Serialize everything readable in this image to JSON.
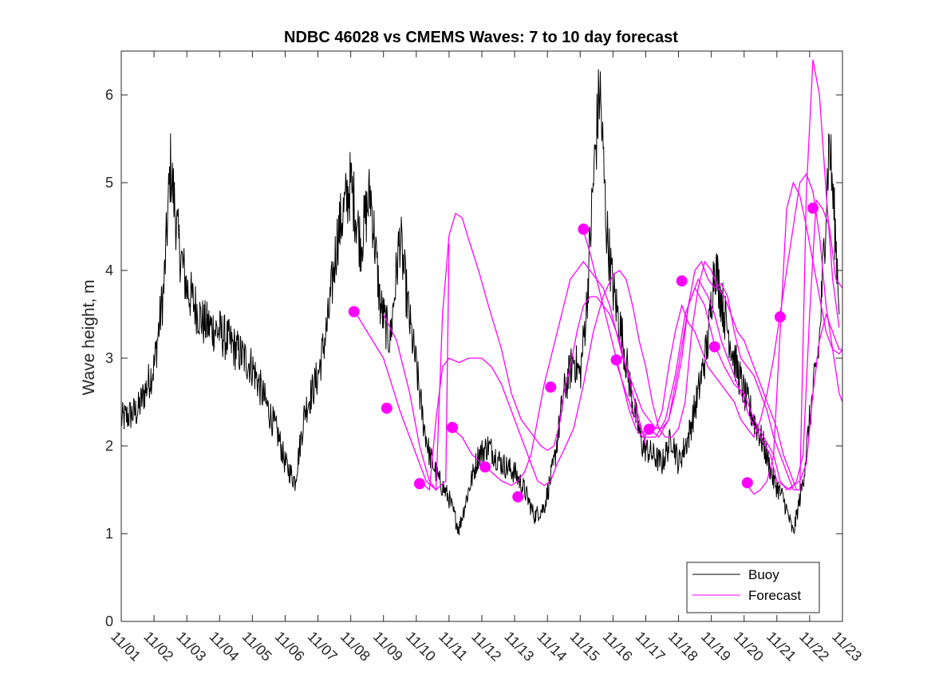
{
  "chart_data": {
    "type": "line",
    "title": "NDBC 46028 vs CMEMS Waves: 7 to 10 day forecast",
    "xlabel": "",
    "ylabel": "Wave height, m",
    "xlim": [
      0,
      22
    ],
    "ylim": [
      0,
      6.5
    ],
    "x_unit": "days since 11/01",
    "xticks": [
      0,
      1,
      2,
      3,
      4,
      5,
      6,
      7,
      8,
      9,
      10,
      11,
      12,
      13,
      14,
      15,
      16,
      17,
      18,
      19,
      20,
      21,
      22
    ],
    "xtick_labels": [
      "11/01",
      "11/02",
      "11/03",
      "11/04",
      "11/05",
      "11/06",
      "11/07",
      "11/08",
      "11/09",
      "11/10",
      "11/11",
      "11/12",
      "11/13",
      "11/14",
      "11/15",
      "11/16",
      "11/17",
      "11/18",
      "11/19",
      "11/20",
      "11/21",
      "11/22",
      "11/23"
    ],
    "yticks": [
      0,
      1,
      2,
      3,
      4,
      5,
      6
    ],
    "ytick_labels": [
      "0",
      "1",
      "2",
      "3",
      "4",
      "5",
      "6"
    ],
    "grid": false,
    "legend": {
      "placement": "bottom-right",
      "entries": [
        "Buoy",
        "Forecast"
      ]
    },
    "colors": {
      "buoy": "#000000",
      "forecast": "#ff00ff"
    },
    "series": [
      {
        "name": "Buoy",
        "x": [
          0.0,
          0.5,
          1.0,
          1.3,
          1.5,
          1.75,
          2.0,
          2.5,
          3.0,
          3.5,
          4.0,
          4.5,
          4.8,
          5.0,
          5.3,
          5.6,
          6.0,
          6.3,
          6.6,
          7.0,
          7.3,
          7.6,
          7.9,
          8.2,
          8.5,
          8.8,
          9.0,
          9.2,
          9.4,
          9.7,
          10.0,
          10.3,
          10.6,
          10.9,
          11.2,
          11.6,
          12.0,
          12.3,
          12.6,
          12.9,
          13.2,
          13.5,
          13.8,
          14.0,
          14.2,
          14.4,
          14.6,
          14.8,
          15.0,
          15.3,
          15.6,
          15.9,
          16.2,
          16.5,
          16.8,
          17.0,
          17.3,
          17.6,
          17.9,
          18.1,
          18.4,
          18.7,
          19.0,
          19.3,
          19.6,
          19.9,
          20.2,
          20.5,
          20.8,
          21.0,
          21.3,
          21.6,
          21.9
        ],
        "y": [
          2.3,
          2.4,
          2.9,
          3.8,
          5.2,
          4.3,
          3.8,
          3.4,
          3.3,
          3.1,
          2.9,
          2.4,
          2.1,
          1.8,
          1.6,
          2.4,
          2.8,
          3.4,
          4.4,
          5.0,
          4.3,
          4.9,
          3.6,
          3.2,
          4.4,
          3.4,
          2.9,
          2.3,
          1.9,
          1.6,
          1.4,
          1.05,
          1.5,
          1.9,
          2.0,
          1.8,
          1.7,
          1.5,
          1.2,
          1.3,
          1.8,
          2.6,
          3.0,
          2.8,
          3.6,
          5.0,
          6.1,
          4.5,
          3.8,
          3.2,
          2.5,
          2.0,
          1.9,
          1.8,
          2.1,
          1.8,
          2.1,
          2.6,
          3.2,
          4.1,
          3.5,
          3.0,
          2.6,
          2.3,
          2.0,
          1.6,
          1.4,
          1.0,
          1.6,
          2.3,
          3.2,
          5.5,
          3.7
        ],
        "noise_amplitude_m": 0.25
      },
      {
        "name": "Forecast",
        "runs": [
          {
            "x": [
              7.1,
              7.5,
              8.0,
              8.5,
              9.0,
              9.3,
              9.6,
              9.9,
              10.0
            ],
            "y": [
              3.55,
              3.3,
              3.0,
              2.4,
              1.9,
              1.6,
              1.5,
              1.6,
              4.3
            ]
          },
          {
            "x": [
              8.0,
              8.4,
              8.8,
              9.1,
              9.4,
              9.6,
              9.8,
              10.0,
              10.2,
              10.4,
              10.6,
              10.9,
              11.2,
              11.6,
              11.9,
              12.2,
              12.4,
              12.6,
              12.8,
              13.0,
              13.2,
              13.4,
              13.5,
              13.7,
              13.9,
              14.1,
              14.3,
              14.5,
              14.7,
              14.9,
              15.0,
              15.2,
              15.4,
              15.6,
              15.8,
              16.0
            ],
            "y": [
              3.5,
              3.2,
              2.6,
              2.0,
              1.6,
              1.5,
              3.5,
              4.4,
              4.65,
              4.6,
              4.35,
              4.0,
              3.6,
              3.1,
              2.6,
              2.3,
              2.2,
              2.1,
              2.0,
              1.95,
              2.0,
              2.3,
              2.6,
              2.9,
              3.3,
              3.6,
              3.7,
              3.7,
              3.6,
              3.5,
              3.4,
              3.2,
              2.9,
              2.6,
              2.3,
              2.0
            ]
          },
          {
            "x": [
              9.1,
              9.4,
              9.6,
              9.8,
              10.0,
              10.3,
              10.6,
              11.0,
              11.3,
              11.6,
              11.9,
              12.2,
              12.5,
              12.7,
              12.9,
              13.1,
              13.3,
              13.5,
              13.8,
              14.1,
              14.4,
              14.7,
              15.0,
              15.2,
              15.4,
              15.6,
              15.8,
              16.0,
              16.2,
              16.4,
              16.6,
              16.8,
              17.0,
              17.2,
              17.4,
              17.6,
              17.8,
              18.0,
              18.2,
              18.4,
              18.6,
              18.8,
              19.0,
              19.2,
              19.4,
              19.6,
              19.8,
              20.0,
              20.2,
              20.4,
              20.6
            ],
            "y": [
              1.6,
              1.5,
              2.3,
              2.9,
              3.0,
              2.95,
              3.0,
              3.0,
              2.9,
              2.7,
              2.4,
              2.1,
              1.8,
              1.6,
              1.55,
              1.6,
              1.8,
              1.95,
              2.2,
              2.7,
              3.3,
              3.7,
              3.95,
              4.0,
              3.9,
              3.6,
              3.2,
              2.9,
              2.5,
              2.2,
              2.1,
              2.1,
              2.2,
              2.5,
              3.3,
              3.8,
              4.1,
              4.0,
              3.8,
              3.7,
              3.5,
              3.3,
              3.2,
              3.0,
              2.8,
              2.6,
              2.4,
              2.2,
              1.9,
              1.7,
              1.5
            ]
          },
          {
            "x": [
              10.1,
              10.4,
              10.7,
              11.0,
              11.3,
              11.6,
              11.9,
              12.1,
              12.3,
              12.5,
              12.7,
              12.9,
              13.1,
              13.3,
              13.5,
              13.7,
              13.9,
              14.1,
              14.3,
              14.5,
              14.7,
              14.9,
              15.1,
              15.3,
              15.5,
              15.7,
              15.9,
              16.1,
              16.3,
              16.5,
              16.7,
              16.9,
              17.1,
              17.3,
              17.5,
              17.7,
              17.9,
              18.1,
              18.3,
              18.5,
              18.7,
              18.9,
              19.1,
              19.3,
              19.5,
              19.7,
              19.9,
              20.1,
              20.3,
              20.5,
              20.7,
              20.9,
              21.1,
              21.3,
              21.5,
              21.7,
              21.9
            ],
            "y": [
              2.2,
              2.1,
              1.9,
              1.8,
              1.7,
              1.6,
              1.55,
              1.6,
              1.7,
              1.9,
              2.3,
              2.7,
              3.0,
              3.3,
              3.6,
              3.9,
              4.0,
              4.1,
              4.0,
              3.9,
              3.8,
              3.6,
              3.3,
              3.0,
              2.8,
              2.6,
              2.4,
              2.3,
              2.2,
              2.2,
              2.3,
              2.6,
              3.0,
              3.6,
              4.0,
              4.1,
              3.9,
              3.8,
              3.85,
              3.7,
              3.3,
              3.0,
              2.9,
              2.8,
              2.6,
              2.4,
              2.1,
              1.9,
              1.7,
              1.5,
              1.5,
              4.9,
              6.4,
              6.0,
              4.9,
              3.9,
              3.35
            ]
          },
          {
            "x": [
              14.1,
              14.3,
              14.5,
              14.7,
              14.9,
              15.1,
              15.3,
              15.5,
              15.7,
              15.9,
              16.1,
              16.3,
              16.5,
              16.7,
              16.9,
              17.1,
              17.3,
              17.5,
              17.7,
              17.9,
              18.1,
              18.3,
              18.5,
              18.7,
              18.9,
              19.1,
              19.3,
              19.5,
              19.7,
              19.9,
              20.1,
              20.3,
              20.5,
              20.7,
              20.9,
              21.1,
              21.3,
              21.5,
              21.7,
              21.9,
              22.0
            ],
            "y": [
              4.45,
              4.2,
              3.9,
              3.6,
              3.3,
              3.0,
              2.7,
              2.4,
              2.2,
              2.1,
              2.15,
              2.2,
              2.4,
              2.9,
              3.3,
              3.6,
              3.4,
              3.3,
              3.1,
              2.9,
              2.8,
              2.7,
              2.6,
              2.5,
              2.3,
              2.2,
              2.1,
              2.3,
              2.6,
              3.0,
              3.5,
              4.0,
              4.5,
              5.0,
              5.1,
              4.9,
              4.4,
              3.6,
              3.1,
              3.05,
              3.1
            ]
          },
          {
            "x": [
              15.1,
              15.4,
              15.7,
              16.0,
              16.3,
              16.6,
              16.9,
              17.2,
              17.5,
              17.8,
              18.1,
              18.4,
              18.7,
              19.0,
              19.3,
              19.6,
              19.9,
              20.1,
              20.3,
              20.5,
              20.7,
              20.9,
              21.1,
              21.3,
              21.5,
              21.7,
              21.9,
              22.0
            ],
            "y": [
              2.95,
              2.6,
              2.3,
              2.1,
              2.1,
              2.3,
              2.8,
              3.5,
              3.8,
              3.6,
              3.15,
              2.9,
              2.7,
              2.6,
              2.3,
              2.1,
              1.9,
              1.6,
              1.5,
              1.55,
              1.6,
              1.8,
              2.6,
              3.2,
              3.5,
              3.3,
              3.1,
              3.1
            ]
          },
          {
            "x": [
              16.1,
              16.4,
              16.7,
              17.0,
              17.3,
              17.6,
              17.9,
              18.1,
              18.3,
              18.6,
              18.9,
              19.2,
              19.5,
              19.8,
              20.0,
              20.2,
              20.4,
              20.6,
              20.8,
              21.0,
              21.2,
              21.4,
              21.6,
              21.8,
              22.0
            ],
            "y": [
              2.2,
              2.1,
              2.3,
              2.9,
              3.6,
              3.9,
              3.7,
              3.5,
              3.2,
              2.9,
              2.6,
              2.3,
              2.1,
              1.9,
              1.6,
              1.55,
              1.5,
              1.6,
              1.9,
              3.5,
              4.8,
              4.7,
              4.5,
              3.9,
              3.8
            ]
          },
          {
            "x": [
              19.1,
              19.3,
              19.5,
              19.7,
              19.9,
              20.1,
              20.3,
              20.5,
              20.7,
              20.9,
              21.1,
              21.3,
              21.5,
              21.7,
              21.9,
              22.0
            ],
            "y": [
              1.55,
              1.45,
              1.5,
              1.6,
              1.9,
              3.3,
              4.7,
              5.0,
              4.85,
              4.5,
              4.1,
              3.7,
              3.3,
              3.1,
              2.6,
              2.5
            ]
          }
        ],
        "markers": {
          "x": [
            7.1,
            8.1,
            9.1,
            10.1,
            11.1,
            12.1,
            13.1,
            14.1,
            15.1,
            16.1,
            17.1,
            18.1,
            19.1,
            20.1,
            21.1
          ],
          "y": [
            3.53,
            2.43,
            1.57,
            2.21,
            1.76,
            1.42,
            2.67,
            4.47,
            2.98,
            2.19,
            3.88,
            3.13,
            1.58,
            3.47,
            4.71
          ]
        }
      }
    ]
  }
}
